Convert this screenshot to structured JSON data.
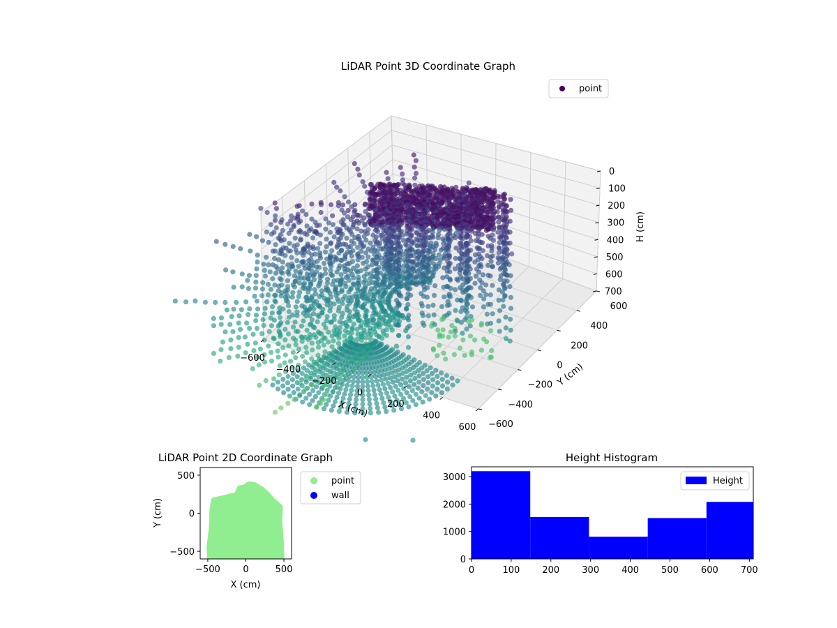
{
  "chart_data": [
    {
      "type": "scatter3d",
      "title": "LiDAR Point 3D Coordinate Graph",
      "xlabel": "X (cm)",
      "ylabel": "Y (cm)",
      "zlabel": "H (cm)",
      "xlim": [
        -600,
        600
      ],
      "ylim": [
        -600,
        600
      ],
      "zlim": [
        0,
        700
      ],
      "z_inverted": true,
      "x_ticks": [
        -600,
        -400,
        -200,
        0,
        200,
        400,
        600
      ],
      "x_tick_labels": [
        "−600",
        "−400",
        "−200",
        "0",
        "200",
        "400",
        "600"
      ],
      "y_ticks": [
        -600,
        -400,
        -200,
        0,
        200,
        400,
        600
      ],
      "y_tick_labels": [
        "−600",
        "−400",
        "−200",
        "0",
        "200",
        "400",
        "600"
      ],
      "z_ticks": [
        0,
        100,
        200,
        300,
        400,
        500,
        600,
        700
      ],
      "z_tick_labels": [
        "0",
        "100",
        "200",
        "300",
        "400",
        "500",
        "600",
        "700"
      ],
      "legend": {
        "placement": "top-right",
        "entries": [
          {
            "label": "point",
            "color": "#440154"
          }
        ]
      },
      "grid": true,
      "colormap": "viridis",
      "series": [
        {
          "name": "point",
          "points": "dense point cloud of a room scan: radial scan lines from center, ceiling near H 0, floor near H 700"
        }
      ]
    },
    {
      "type": "scatter",
      "title": "LiDAR Point 2D Coordinate Graph",
      "xlabel": "X (cm)",
      "ylabel": "Y (cm)",
      "xlim": [
        -600,
        600
      ],
      "ylim": [
        -600,
        600
      ],
      "x_ticks": [
        -500,
        0,
        500
      ],
      "x_tick_labels": [
        "−500",
        "0",
        "500"
      ],
      "y_ticks": [
        -500,
        0,
        500
      ],
      "y_tick_labels": [
        "−500",
        "0",
        "500"
      ],
      "legend": {
        "placement": "outside-right",
        "entries": [
          {
            "label": "point",
            "color": "#90ee90"
          },
          {
            "label": "wall",
            "color": "#0000ff"
          }
        ]
      },
      "series": [
        {
          "name": "point",
          "color": "#90ee90",
          "outline": [
            [
              -470,
              -600
            ],
            [
              -480,
              -450
            ],
            [
              -450,
              -200
            ],
            [
              -440,
              60
            ],
            [
              -420,
              170
            ],
            [
              -250,
              210
            ],
            [
              -120,
              240
            ],
            [
              -80,
              330
            ],
            [
              -20,
              340
            ],
            [
              40,
              380
            ],
            [
              110,
              370
            ],
            [
              200,
              320
            ],
            [
              280,
              250
            ],
            [
              340,
              180
            ],
            [
              450,
              80
            ],
            [
              440,
              -100
            ],
            [
              460,
              -350
            ],
            [
              470,
              -600
            ]
          ]
        },
        {
          "name": "wall",
          "color": "#0000ff",
          "outline": []
        }
      ]
    },
    {
      "type": "bar",
      "title": "Height Histogram",
      "xlabel": "",
      "ylabel": "",
      "bins": [
        [
          0,
          148
        ],
        [
          148,
          296
        ],
        [
          296,
          444
        ],
        [
          444,
          592
        ],
        [
          592,
          740
        ]
      ],
      "values": [
        3200,
        1530,
        810,
        1490,
        2080
      ],
      "xlim": [
        0,
        710
      ],
      "ylim": [
        0,
        3360
      ],
      "x_ticks": [
        0,
        100,
        200,
        300,
        400,
        500,
        600,
        700
      ],
      "x_tick_labels": [
        "0",
        "100",
        "200",
        "300",
        "400",
        "500",
        "600",
        "700"
      ],
      "y_ticks": [
        0,
        1000,
        2000,
        3000
      ],
      "y_tick_labels": [
        "0",
        "1000",
        "2000",
        "3000"
      ],
      "legend": {
        "placement": "top-right",
        "entries": [
          {
            "label": "Height",
            "color": "#0000ff"
          }
        ]
      },
      "series": [
        {
          "name": "Height",
          "color": "#0000ff",
          "values": [
            3200,
            1530,
            810,
            1490,
            2080
          ]
        }
      ]
    }
  ]
}
